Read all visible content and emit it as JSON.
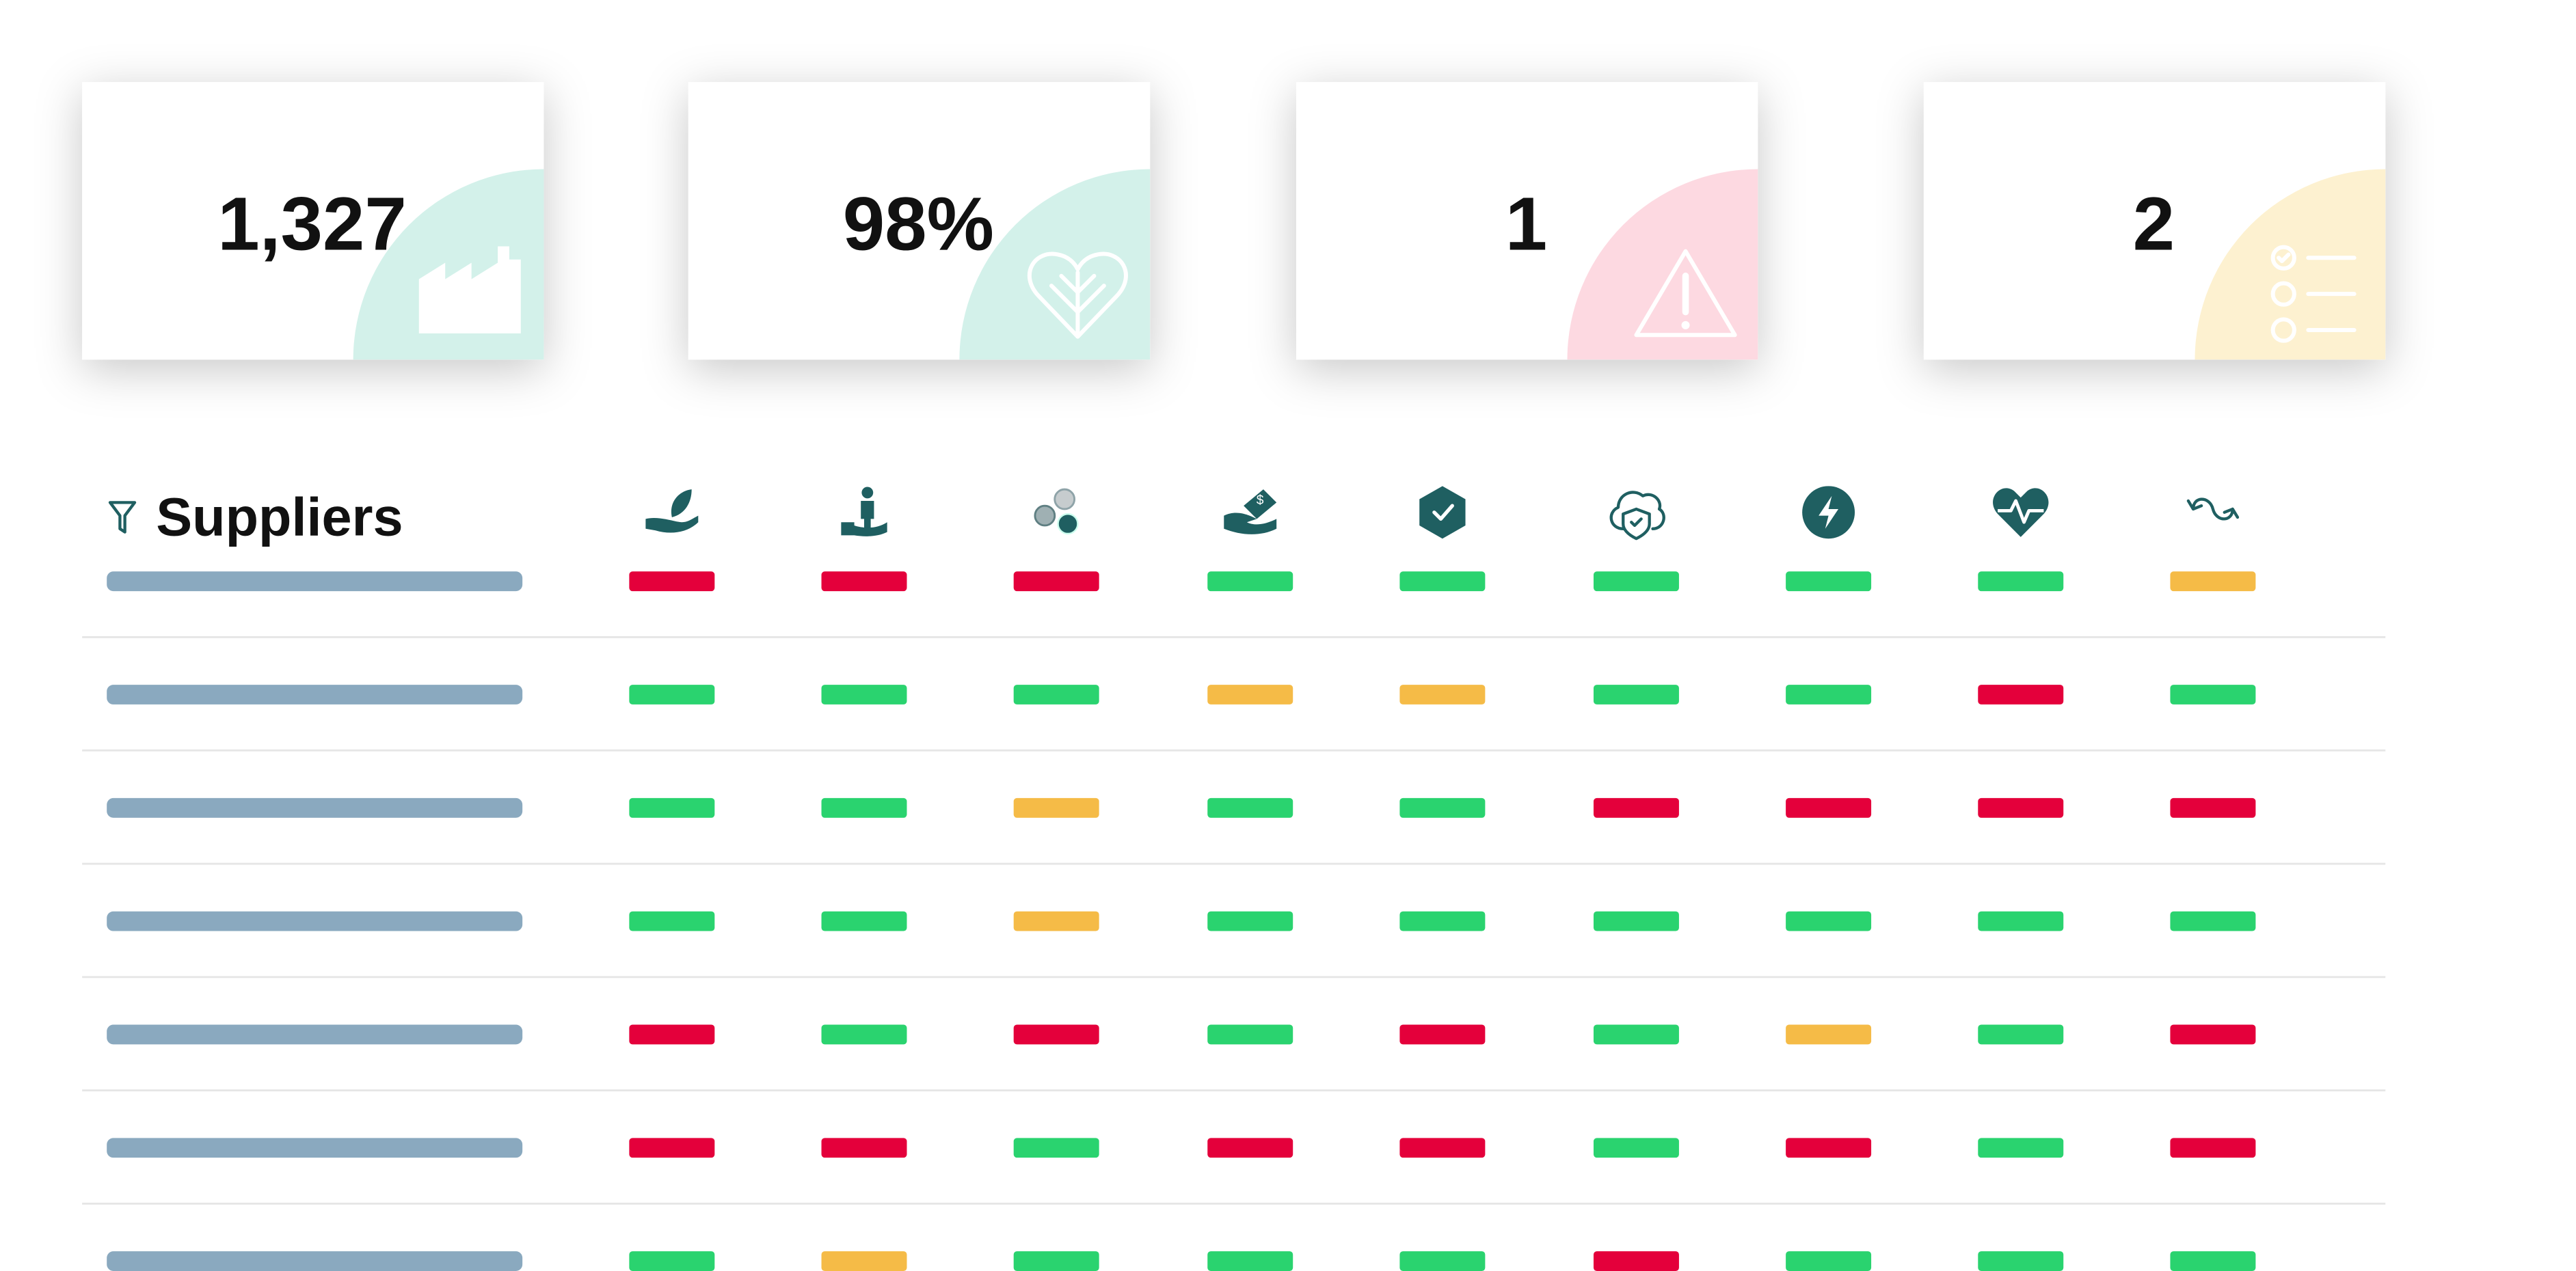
{
  "cards": [
    {
      "value": "1,327",
      "color": "#d3f1ea"
    },
    {
      "value": "98%",
      "color": "#d3f1ea"
    },
    {
      "value": "1",
      "color": "#fdd9e1"
    },
    {
      "value": "2",
      "color": "#fdf1d0"
    }
  ],
  "table": {
    "title": "Suppliers",
    "rows": [
      [
        "#e4003b",
        "#e4003b",
        "#e4003b",
        "#2ad36f",
        "#2ad36f",
        "#2ad36f",
        "#2ad36f",
        "#2ad36f",
        "#f5bb47"
      ],
      [
        "#2ad36f",
        "#2ad36f",
        "#2ad36f",
        "#f5bb47",
        "#f5bb47",
        "#2ad36f",
        "#2ad36f",
        "#e4003b",
        "#2ad36f"
      ],
      [
        "#2ad36f",
        "#2ad36f",
        "#f5bb47",
        "#2ad36f",
        "#2ad36f",
        "#e4003b",
        "#e4003b",
        "#e4003b",
        "#e4003b"
      ],
      [
        "#2ad36f",
        "#2ad36f",
        "#f5bb47",
        "#2ad36f",
        "#2ad36f",
        "#2ad36f",
        "#2ad36f",
        "#2ad36f",
        "#2ad36f"
      ],
      [
        "#e4003b",
        "#2ad36f",
        "#e4003b",
        "#2ad36f",
        "#e4003b",
        "#2ad36f",
        "#f5bb47",
        "#2ad36f",
        "#e4003b"
      ],
      [
        "#e4003b",
        "#e4003b",
        "#2ad36f",
        "#e4003b",
        "#e4003b",
        "#2ad36f",
        "#e4003b",
        "#2ad36f",
        "#e4003b"
      ],
      [
        "#2ad36f",
        "#f5bb47",
        "#2ad36f",
        "#2ad36f",
        "#2ad36f",
        "#e4003b",
        "#2ad36f",
        "#2ad36f",
        "#2ad36f"
      ]
    ]
  }
}
